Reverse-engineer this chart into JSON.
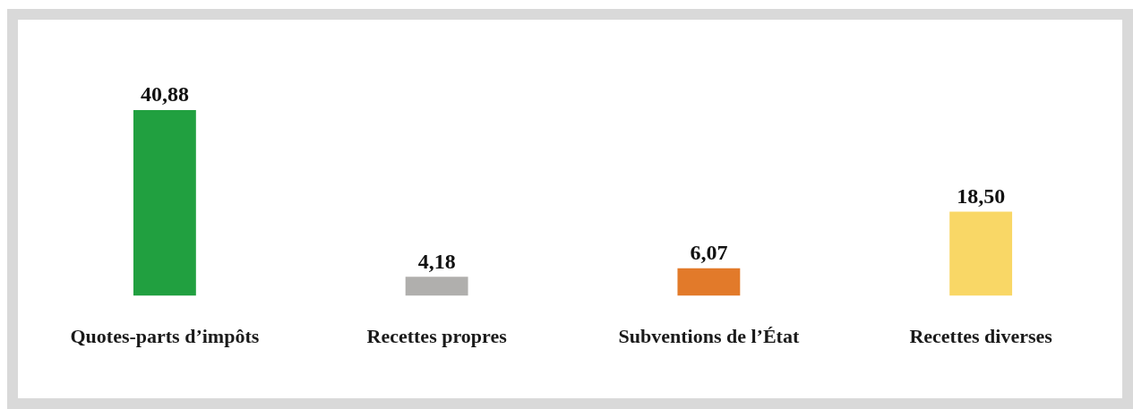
{
  "chart_data": {
    "type": "bar",
    "categories": [
      "Quotes-parts d’impôts",
      "Recettes propres",
      "Subventions de l’État",
      "Recettes diverses"
    ],
    "values": [
      40.88,
      4.18,
      6.07,
      18.5
    ],
    "colors": [
      "#21a040",
      "#b0afad",
      "#e27a2a",
      "#f9d766"
    ],
    "value_labels": [
      "40,88",
      "4,18",
      "6,07",
      "18,50"
    ]
  }
}
